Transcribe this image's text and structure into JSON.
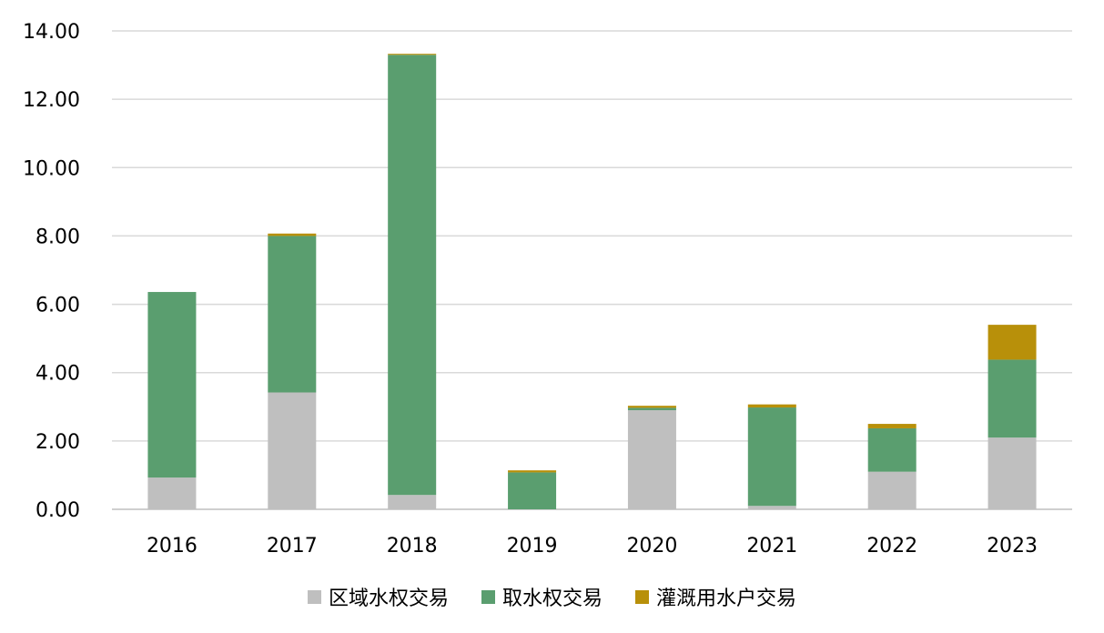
{
  "chart_data": {
    "type": "bar",
    "stacked": true,
    "categories": [
      "2016",
      "2017",
      "2018",
      "2019",
      "2020",
      "2021",
      "2022",
      "2023"
    ],
    "series": [
      {
        "name": "区域水权交易",
        "color": "#bfbfbf",
        "values": [
          0.93,
          3.42,
          0.42,
          0.0,
          2.9,
          0.1,
          1.1,
          2.1
        ]
      },
      {
        "name": "取水权交易",
        "color": "#5a9e6f",
        "values": [
          5.43,
          4.58,
          12.88,
          1.08,
          0.07,
          2.88,
          1.27,
          2.28
        ]
      },
      {
        "name": "灌溉用水户交易",
        "color": "#b8900a",
        "values": [
          0.0,
          0.07,
          0.03,
          0.06,
          0.06,
          0.09,
          0.13,
          1.02
        ]
      }
    ],
    "ylim": [
      0,
      14
    ],
    "yticks": [
      "0.00",
      "2.00",
      "4.00",
      "6.00",
      "8.00",
      "10.00",
      "12.00",
      "14.00"
    ],
    "grid": true,
    "legend_position": "bottom",
    "title": "",
    "xlabel": "",
    "ylabel": ""
  }
}
